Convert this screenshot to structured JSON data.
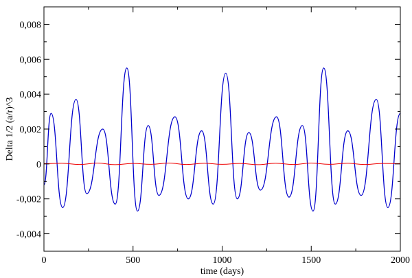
{
  "chart_data": {
    "type": "line",
    "xlabel": "time (days)",
    "ylabel": "Delta 1/2 (a/r)^3",
    "xlim": [
      0,
      2000
    ],
    "ylim": [
      -0.005,
      0.009
    ],
    "x_ticks": [
      {
        "value": 0,
        "label": "0"
      },
      {
        "value": 500,
        "label": "500"
      },
      {
        "value": 1000,
        "label": "1000"
      },
      {
        "value": 1500,
        "label": "1500"
      },
      {
        "value": 2000,
        "label": "2000"
      }
    ],
    "y_ticks": [
      {
        "value": -0.004,
        "label": "-0,004"
      },
      {
        "value": -0.002,
        "label": "-0,002"
      },
      {
        "value": 0,
        "label": "0"
      },
      {
        "value": 0.002,
        "label": "0,002"
      },
      {
        "value": 0.004,
        "label": "0,004"
      },
      {
        "value": 0.006,
        "label": "0,006"
      },
      {
        "value": 0.008,
        "label": "0,008"
      }
    ],
    "grid": false,
    "series": [
      {
        "color": "#0000cc",
        "x": [
          0,
          40,
          105,
          180,
          240,
          330,
          400,
          465,
          525,
          585,
          645,
          735,
          810,
          885,
          950,
          1020,
          1085,
          1150,
          1215,
          1305,
          1375,
          1450,
          1510,
          1570,
          1635,
          1705,
          1780,
          1865,
          1930,
          2000
        ],
        "y": [
          -0.0012,
          0.0029,
          -0.0025,
          0.0037,
          -0.0017,
          0.002,
          -0.0023,
          0.0055,
          -0.0027,
          0.0022,
          -0.0018,
          0.0027,
          -0.002,
          0.0019,
          -0.0023,
          0.0052,
          -0.002,
          0.0018,
          -0.0015,
          0.0027,
          -0.0019,
          0.0022,
          -0.0027,
          0.0055,
          -0.0023,
          0.0019,
          -0.0018,
          0.0037,
          -0.0025,
          0.0029
        ]
      },
      {
        "color": "#ee0000",
        "x": [
          0,
          100,
          200,
          300,
          400,
          500,
          600,
          700,
          800,
          900,
          1000,
          1100,
          1200,
          1300,
          1400,
          1500,
          1600,
          1700,
          1800,
          1900,
          2000
        ],
        "y": [
          2e-05,
          4e-05,
          -3e-05,
          5e-05,
          -4e-05,
          3e-05,
          -2e-05,
          5e-05,
          -3e-05,
          4e-05,
          -2e-05,
          3e-05,
          -4e-05,
          4e-05,
          -3e-05,
          5e-05,
          -2e-05,
          4e-05,
          -3e-05,
          3e-05,
          2e-05
        ]
      }
    ]
  }
}
